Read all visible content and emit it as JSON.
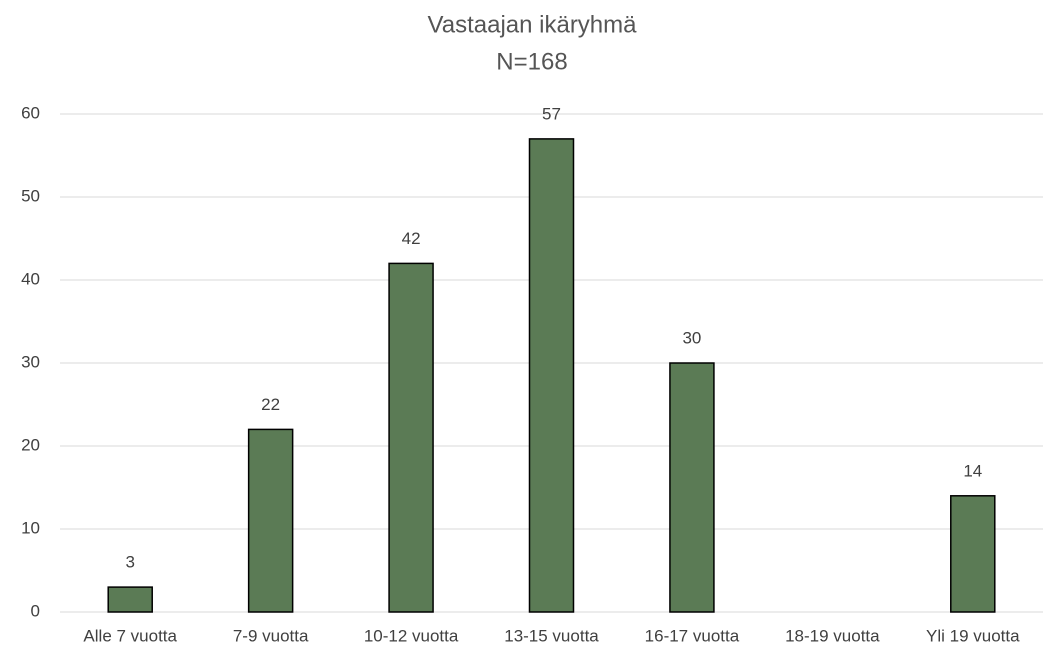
{
  "chart_data": {
    "type": "bar",
    "title": "Vastaajan ikäryhmä",
    "subtitle": "N=168",
    "categories": [
      "Alle 7 vuotta",
      "7-9 vuotta",
      "10-12 vuotta",
      "13-15 vuotta",
      "16-17 vuotta",
      "18-19 vuotta",
      "Yli 19 vuotta"
    ],
    "values": [
      3,
      22,
      42,
      57,
      30,
      null,
      14
    ],
    "color": "#5b7b55",
    "ylim": [
      0,
      60
    ],
    "yticks": [
      0,
      10,
      20,
      30,
      40,
      50,
      60
    ],
    "grid": true
  }
}
